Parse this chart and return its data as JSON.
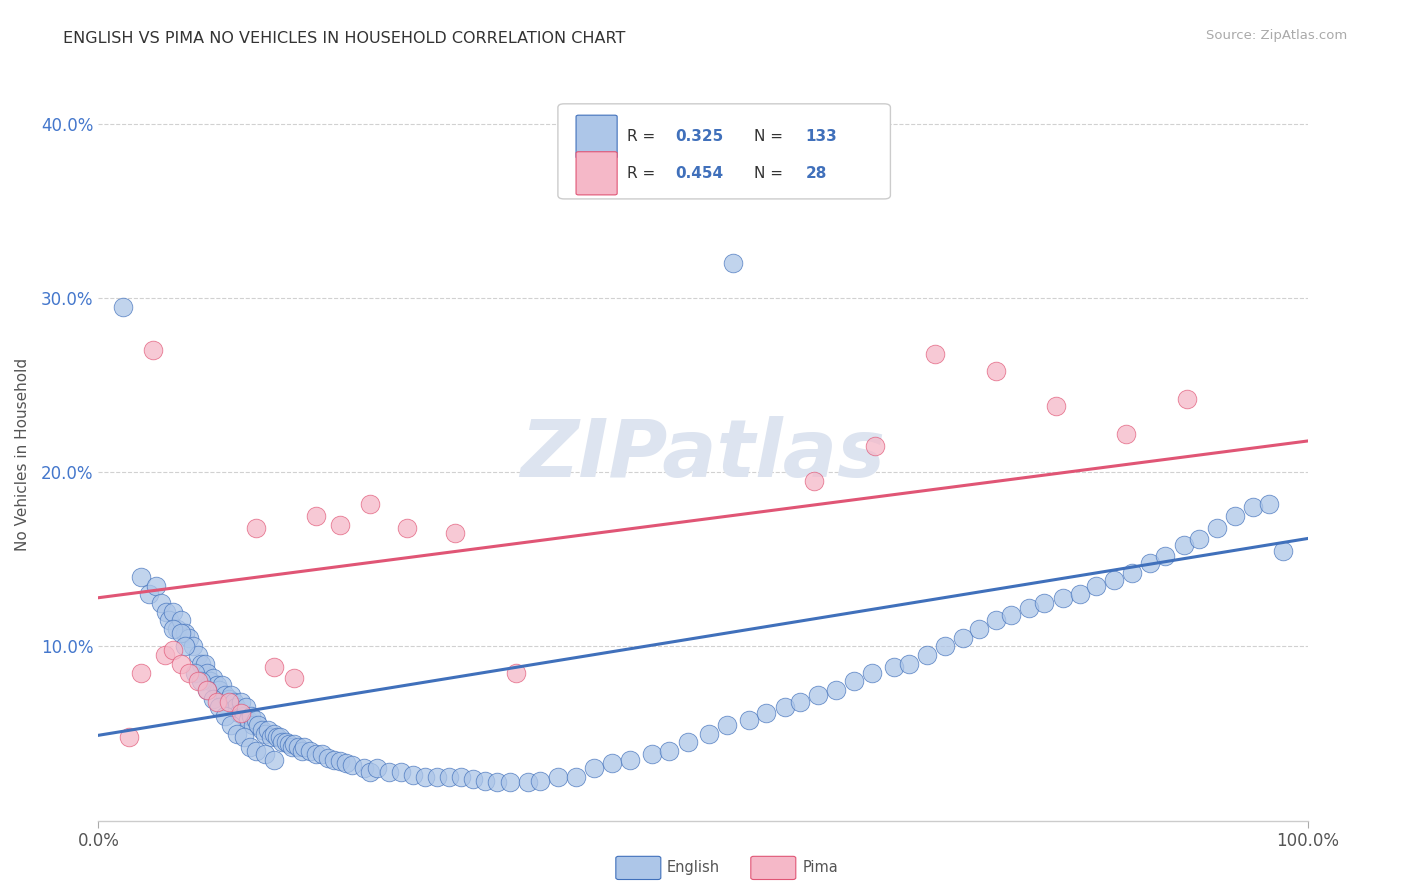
{
  "title": "ENGLISH VS PIMA NO VEHICLES IN HOUSEHOLD CORRELATION CHART",
  "source_text": "Source: ZipAtlas.com",
  "ylabel": "No Vehicles in Household",
  "xlim": [
    0.0,
    1.0
  ],
  "ylim": [
    0.0,
    0.42
  ],
  "xtick_positions": [
    0.0,
    1.0
  ],
  "xtick_labels": [
    "0.0%",
    "100.0%"
  ],
  "ytick_values": [
    0.1,
    0.2,
    0.3,
    0.4
  ],
  "ytick_labels": [
    "10.0%",
    "20.0%",
    "30.0%",
    "40.0%"
  ],
  "background_color": "#ffffff",
  "grid_color": "#cccccc",
  "watermark_text": "ZIPatlas",
  "watermark_color": "#dde4f0",
  "color_english": "#adc6e8",
  "color_pima": "#f5b8c8",
  "line_color_english": "#4070bb",
  "line_color_pima": "#e05575",
  "english_x": [
    0.02,
    0.035,
    0.042,
    0.048,
    0.052,
    0.056,
    0.058,
    0.062,
    0.065,
    0.068,
    0.072,
    0.075,
    0.078,
    0.082,
    0.085,
    0.088,
    0.09,
    0.092,
    0.095,
    0.098,
    0.1,
    0.102,
    0.105,
    0.108,
    0.11,
    0.112,
    0.114,
    0.116,
    0.118,
    0.12,
    0.122,
    0.124,
    0.126,
    0.128,
    0.13,
    0.132,
    0.135,
    0.138,
    0.14,
    0.143,
    0.145,
    0.148,
    0.15,
    0.152,
    0.155,
    0.158,
    0.16,
    0.162,
    0.165,
    0.168,
    0.17,
    0.175,
    0.18,
    0.185,
    0.19,
    0.195,
    0.2,
    0.205,
    0.21,
    0.22,
    0.225,
    0.23,
    0.24,
    0.25,
    0.26,
    0.27,
    0.28,
    0.29,
    0.3,
    0.31,
    0.32,
    0.33,
    0.34,
    0.355,
    0.365,
    0.38,
    0.395,
    0.41,
    0.425,
    0.44,
    0.458,
    0.472,
    0.488,
    0.505,
    0.52,
    0.538,
    0.552,
    0.568,
    0.58,
    0.595,
    0.61,
    0.625,
    0.64,
    0.658,
    0.67,
    0.685,
    0.7,
    0.715,
    0.728,
    0.742,
    0.755,
    0.77,
    0.782,
    0.798,
    0.812,
    0.825,
    0.84,
    0.855,
    0.87,
    0.882,
    0.898,
    0.91,
    0.925,
    0.94,
    0.955,
    0.968,
    0.98,
    0.062,
    0.068,
    0.072,
    0.08,
    0.085,
    0.09,
    0.095,
    0.1,
    0.105,
    0.11,
    0.115,
    0.12,
    0.125,
    0.13,
    0.138,
    0.145,
    0.525
  ],
  "english_y": [
    0.295,
    0.14,
    0.13,
    0.135,
    0.125,
    0.12,
    0.115,
    0.12,
    0.11,
    0.115,
    0.108,
    0.105,
    0.1,
    0.095,
    0.09,
    0.09,
    0.085,
    0.08,
    0.082,
    0.078,
    0.075,
    0.078,
    0.072,
    0.07,
    0.072,
    0.068,
    0.065,
    0.062,
    0.068,
    0.06,
    0.065,
    0.058,
    0.06,
    0.055,
    0.058,
    0.055,
    0.052,
    0.05,
    0.052,
    0.048,
    0.05,
    0.048,
    0.048,
    0.045,
    0.045,
    0.044,
    0.042,
    0.044,
    0.042,
    0.04,
    0.042,
    0.04,
    0.038,
    0.038,
    0.036,
    0.035,
    0.034,
    0.033,
    0.032,
    0.03,
    0.028,
    0.03,
    0.028,
    0.028,
    0.026,
    0.025,
    0.025,
    0.025,
    0.025,
    0.024,
    0.023,
    0.022,
    0.022,
    0.022,
    0.023,
    0.025,
    0.025,
    0.03,
    0.033,
    0.035,
    0.038,
    0.04,
    0.045,
    0.05,
    0.055,
    0.058,
    0.062,
    0.065,
    0.068,
    0.072,
    0.075,
    0.08,
    0.085,
    0.088,
    0.09,
    0.095,
    0.1,
    0.105,
    0.11,
    0.115,
    0.118,
    0.122,
    0.125,
    0.128,
    0.13,
    0.135,
    0.138,
    0.142,
    0.148,
    0.152,
    0.158,
    0.162,
    0.168,
    0.175,
    0.18,
    0.182,
    0.155,
    0.11,
    0.108,
    0.1,
    0.085,
    0.08,
    0.075,
    0.07,
    0.065,
    0.06,
    0.055,
    0.05,
    0.048,
    0.042,
    0.04,
    0.038,
    0.035,
    0.32
  ],
  "pima_x": [
    0.025,
    0.035,
    0.045,
    0.055,
    0.062,
    0.068,
    0.075,
    0.082,
    0.09,
    0.098,
    0.108,
    0.118,
    0.13,
    0.145,
    0.162,
    0.18,
    0.2,
    0.225,
    0.255,
    0.295,
    0.345,
    0.592,
    0.642,
    0.692,
    0.742,
    0.792,
    0.85,
    0.9
  ],
  "pima_y": [
    0.048,
    0.085,
    0.27,
    0.095,
    0.098,
    0.09,
    0.085,
    0.08,
    0.075,
    0.068,
    0.068,
    0.062,
    0.168,
    0.088,
    0.082,
    0.175,
    0.17,
    0.182,
    0.168,
    0.165,
    0.085,
    0.195,
    0.215,
    0.268,
    0.258,
    0.238,
    0.222,
    0.242
  ],
  "eng_line_x": [
    0.0,
    1.0
  ],
  "eng_line_y": [
    0.049,
    0.162
  ],
  "pima_line_x": [
    0.0,
    1.0
  ],
  "pima_line_y": [
    0.128,
    0.218
  ]
}
